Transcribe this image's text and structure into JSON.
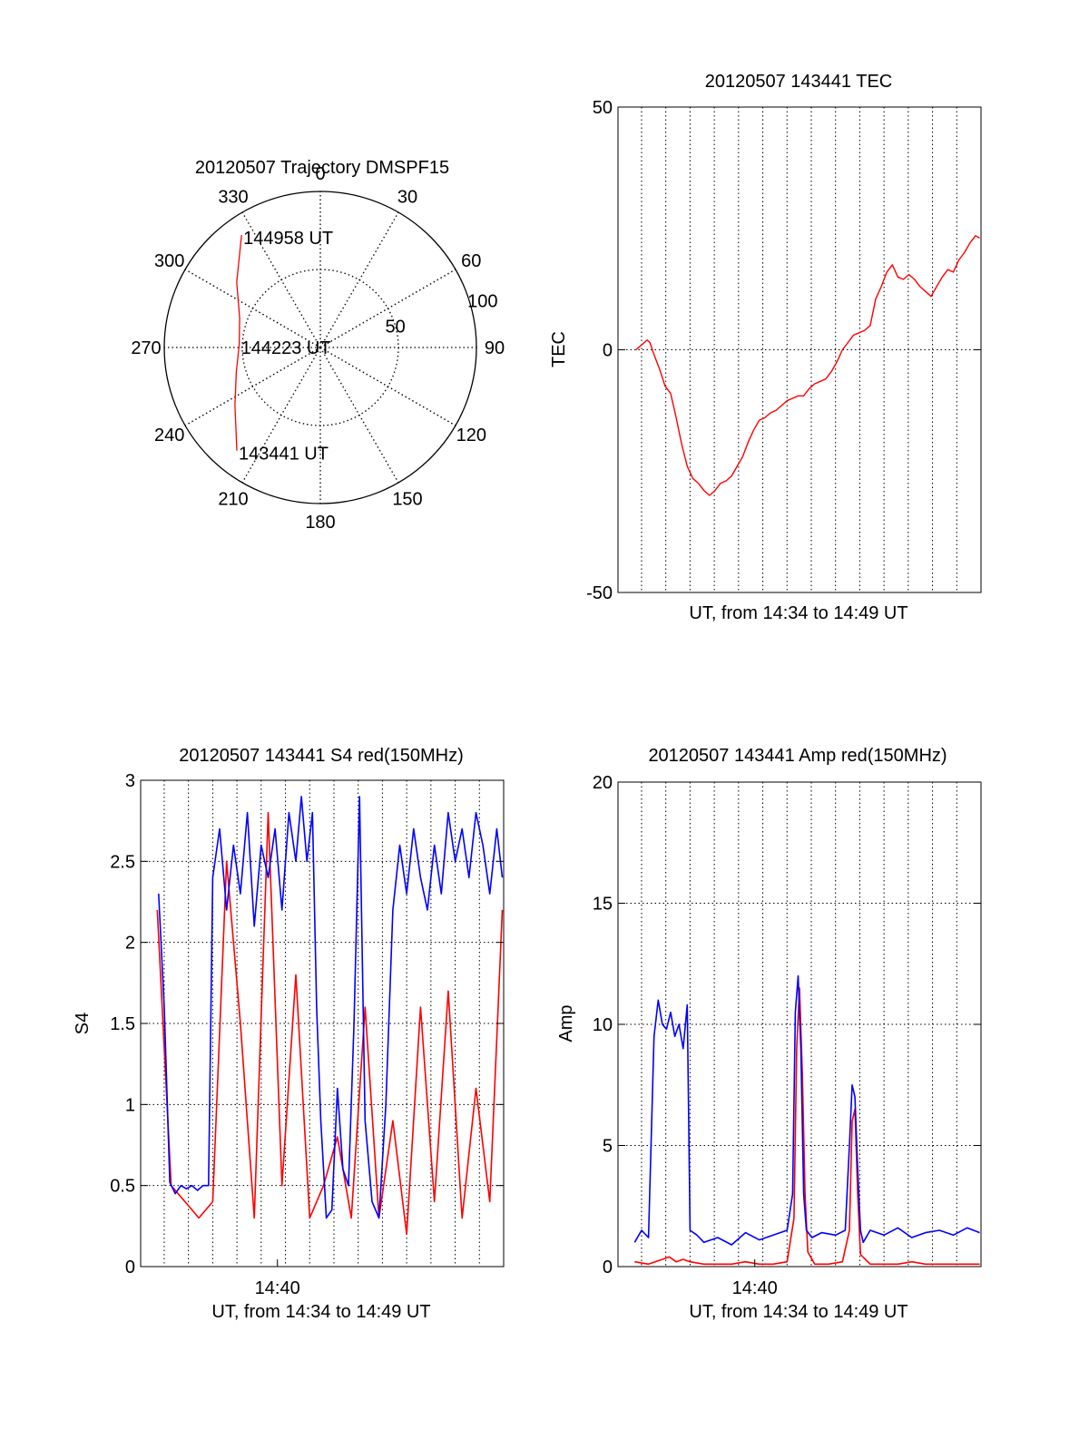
{
  "chart_data": [
    {
      "type": "polar",
      "title": "20120507 Trajectory DMSPF15",
      "angle_labels": [
        "0",
        "30",
        "60",
        "90",
        "120",
        "150",
        "180",
        "210",
        "240",
        "270",
        "300",
        "330"
      ],
      "angles_deg": [
        0,
        30,
        60,
        90,
        120,
        150,
        180,
        210,
        240,
        270,
        300,
        330
      ],
      "radial_ticks": [
        50,
        100
      ],
      "radial_labels": [
        "50",
        "100"
      ],
      "rlim": [
        0,
        100
      ],
      "grid": true,
      "track": {
        "color": "#ff0000",
        "points": [
          [
            325,
            88
          ],
          [
            308,
            68
          ],
          [
            290,
            55
          ],
          [
            272,
            52
          ],
          [
            254,
            56
          ],
          [
            236,
            66
          ],
          [
            219,
            85
          ]
        ]
      },
      "annotations": [
        {
          "text": "144958 UT",
          "az": 325,
          "r": 88
        },
        {
          "text": "144223 UT",
          "az": 272,
          "r": 52
        },
        {
          "text": "143441 UT",
          "az": 219,
          "r": 85
        }
      ]
    },
    {
      "type": "line",
      "title": "20120507 143441 TEC",
      "xlabel": "UT, from 14:34 to 14:49 UT",
      "ylabel": "TEC",
      "xlim": [
        14.568,
        14.83
      ],
      "ylim": [
        -50,
        50
      ],
      "yticks": [
        -50,
        0,
        50
      ],
      "ytick_labels": [
        "-50",
        "0",
        "50"
      ],
      "xgrid": [
        14.585,
        14.6025,
        14.62,
        14.6375,
        14.655,
        14.6725,
        14.69,
        14.7075,
        14.725,
        14.7425,
        14.76,
        14.7775,
        14.795,
        14.8125
      ],
      "ygrid": [
        0
      ],
      "series": [
        {
          "color": "#ff0000",
          "x": [
            14.581,
            14.583,
            14.585,
            14.587,
            14.589,
            14.591,
            14.594,
            14.598,
            14.602,
            14.606,
            14.61,
            14.614,
            14.618,
            14.622,
            14.626,
            14.63,
            14.634,
            14.638,
            14.642,
            14.646,
            14.65,
            14.654,
            14.658,
            14.662,
            14.666,
            14.67,
            14.674,
            14.678,
            14.682,
            14.686,
            14.69,
            14.694,
            14.698,
            14.702,
            14.706,
            14.71,
            14.714,
            14.718,
            14.722,
            14.726,
            14.73,
            14.734,
            14.738,
            14.742,
            14.746,
            14.75,
            14.754,
            14.758,
            14.762,
            14.766,
            14.77,
            14.774,
            14.778,
            14.782,
            14.786,
            14.79,
            14.794,
            14.798,
            14.802,
            14.806,
            14.81,
            14.814,
            14.818,
            14.822,
            14.826,
            14.829
          ],
          "y": [
            0.0,
            0.5,
            1.0,
            1.5,
            2.0,
            1.5,
            -1.0,
            -4.0,
            -7.5,
            -9.0,
            -14.0,
            -19.5,
            -24.0,
            -26.5,
            -27.5,
            -29.0,
            -30.0,
            -29.0,
            -27.5,
            -27.0,
            -26.0,
            -24.0,
            -22.0,
            -19.0,
            -16.5,
            -14.5,
            -14.0,
            -13.0,
            -12.5,
            -11.5,
            -10.5,
            -10.0,
            -9.5,
            -9.5,
            -8.0,
            -7.0,
            -6.5,
            -6.0,
            -4.5,
            -2.5,
            0.0,
            1.5,
            3.0,
            3.5,
            4.0,
            5.0,
            10.5,
            13.0,
            16.0,
            17.5,
            15.0,
            14.5,
            15.5,
            14.5,
            13.0,
            12.0,
            11.0,
            13.0,
            15.0,
            16.5,
            16.0,
            18.5,
            20.0,
            22.0,
            23.5,
            23.0
          ]
        }
      ]
    },
    {
      "type": "line",
      "title": "20120507 143441 S4 red(150MHz)",
      "xlabel": "UT, from 14:34 to 14:49 UT",
      "ylabel": "S4",
      "xlim": [
        14.568,
        14.83
      ],
      "ylim": [
        0,
        3
      ],
      "yticks": [
        0,
        0.5,
        1,
        1.5,
        2,
        2.5,
        3
      ],
      "ytick_labels": [
        "0",
        "0.5",
        "1",
        "1.5",
        "2",
        "2.5",
        "3"
      ],
      "xticks": [
        14.6667
      ],
      "xtick_labels": [
        "14:40"
      ],
      "xgrid": [
        14.585,
        14.6025,
        14.62,
        14.6375,
        14.655,
        14.6725,
        14.69,
        14.7075,
        14.725,
        14.7425,
        14.76,
        14.7775,
        14.795,
        14.8125
      ],
      "ygrid": [
        0.5,
        1,
        1.5,
        2,
        2.5
      ],
      "series": [
        {
          "name": "red",
          "color": "#ff0000",
          "x": [
            14.58,
            14.59,
            14.6,
            14.61,
            14.62,
            14.63,
            14.64,
            14.65,
            14.66,
            14.67,
            14.68,
            14.69,
            14.7,
            14.71,
            14.72,
            14.73,
            14.74,
            14.75,
            14.76,
            14.77,
            14.78,
            14.79,
            14.8,
            14.81,
            14.82,
            14.829
          ],
          "y": [
            2.2,
            0.5,
            0.4,
            0.3,
            0.4,
            2.5,
            1.5,
            0.3,
            2.8,
            0.5,
            1.8,
            0.3,
            0.5,
            0.8,
            0.3,
            1.6,
            0.3,
            0.9,
            0.2,
            1.6,
            0.4,
            1.7,
            0.3,
            1.1,
            0.4,
            2.2
          ]
        },
        {
          "name": "blue",
          "color": "#0000ff",
          "x": [
            14.581,
            14.585,
            14.589,
            14.593,
            14.597,
            14.601,
            14.605,
            14.609,
            14.613,
            14.617,
            14.62,
            14.625,
            14.63,
            14.635,
            14.64,
            14.645,
            14.65,
            14.655,
            14.66,
            14.665,
            14.67,
            14.675,
            14.68,
            14.684,
            14.688,
            14.692,
            14.695,
            14.698,
            14.702,
            14.706,
            14.71,
            14.714,
            14.718,
            14.722,
            14.726,
            14.73,
            14.735,
            14.74,
            14.745,
            14.75,
            14.755,
            14.76,
            14.765,
            14.77,
            14.775,
            14.78,
            14.785,
            14.79,
            14.795,
            14.8,
            14.805,
            14.81,
            14.815,
            14.82,
            14.825,
            14.829
          ],
          "y": [
            2.3,
            1.6,
            0.52,
            0.45,
            0.5,
            0.48,
            0.5,
            0.47,
            0.5,
            0.5,
            2.4,
            2.7,
            2.2,
            2.6,
            2.3,
            2.8,
            2.1,
            2.6,
            2.4,
            2.7,
            2.2,
            2.8,
            2.5,
            2.9,
            2.5,
            2.8,
            1.6,
            0.9,
            0.3,
            0.35,
            1.1,
            0.6,
            0.5,
            1.5,
            2.9,
            0.9,
            0.4,
            0.3,
            1.0,
            2.2,
            2.6,
            2.3,
            2.7,
            2.4,
            2.2,
            2.6,
            2.3,
            2.8,
            2.5,
            2.7,
            2.4,
            2.8,
            2.6,
            2.3,
            2.7,
            2.4
          ]
        }
      ]
    },
    {
      "type": "line",
      "title": "20120507 143441 Amp red(150MHz)",
      "xlabel": "UT, from 14:34 to 14:49 UT",
      "ylabel": "Amp",
      "xlim": [
        14.568,
        14.83
      ],
      "ylim": [
        0,
        20
      ],
      "yticks": [
        0,
        5,
        10,
        15,
        20
      ],
      "ytick_labels": [
        "0",
        "5",
        "10",
        "15",
        "20"
      ],
      "xticks": [
        14.6667
      ],
      "xtick_labels": [
        "14:40"
      ],
      "xgrid": [
        14.585,
        14.6025,
        14.62,
        14.6375,
        14.655,
        14.6725,
        14.69,
        14.7075,
        14.725,
        14.7425,
        14.76,
        14.7775,
        14.795,
        14.8125
      ],
      "ygrid": [
        5,
        10,
        15
      ],
      "series": [
        {
          "name": "red",
          "color": "#ff0000",
          "x": [
            14.58,
            14.59,
            14.6,
            14.605,
            14.61,
            14.615,
            14.62,
            14.63,
            14.64,
            14.65,
            14.66,
            14.67,
            14.68,
            14.69,
            14.695,
            14.697,
            14.699,
            14.701,
            14.703,
            14.705,
            14.71,
            14.72,
            14.73,
            14.735,
            14.737,
            14.739,
            14.741,
            14.743,
            14.75,
            14.76,
            14.77,
            14.78,
            14.79,
            14.8,
            14.81,
            14.82,
            14.829
          ],
          "y": [
            0.2,
            0.1,
            0.3,
            0.4,
            0.2,
            0.3,
            0.2,
            0.1,
            0.1,
            0.1,
            0.2,
            0.1,
            0.1,
            0.2,
            2.0,
            9.0,
            11.5,
            8.0,
            3.0,
            0.6,
            0.1,
            0.1,
            0.2,
            1.5,
            6.0,
            6.5,
            3.0,
            0.5,
            0.1,
            0.1,
            0.1,
            0.2,
            0.1,
            0.1,
            0.1,
            0.1,
            0.1
          ]
        },
        {
          "name": "blue",
          "color": "#0000ff",
          "x": [
            14.58,
            14.585,
            14.59,
            14.594,
            14.597,
            14.6,
            14.603,
            14.606,
            14.609,
            14.612,
            14.615,
            14.618,
            14.62,
            14.625,
            14.63,
            14.64,
            14.65,
            14.66,
            14.67,
            14.68,
            14.69,
            14.694,
            14.696,
            14.698,
            14.7,
            14.702,
            14.704,
            14.708,
            14.715,
            14.725,
            14.732,
            14.735,
            14.737,
            14.739,
            14.741,
            14.743,
            14.745,
            14.75,
            14.76,
            14.77,
            14.78,
            14.79,
            14.8,
            14.81,
            14.82,
            14.829
          ],
          "y": [
            1.0,
            1.5,
            1.2,
            9.5,
            11.0,
            10.0,
            9.8,
            10.5,
            9.5,
            10.0,
            9.0,
            10.8,
            1.5,
            1.3,
            1.0,
            1.2,
            0.9,
            1.4,
            1.1,
            1.3,
            1.5,
            3.0,
            10.5,
            12.0,
            9.0,
            3.0,
            1.5,
            1.2,
            1.4,
            1.3,
            1.5,
            5.0,
            7.5,
            7.0,
            4.0,
            1.5,
            1.0,
            1.5,
            1.3,
            1.6,
            1.2,
            1.4,
            1.5,
            1.3,
            1.6,
            1.4
          ]
        }
      ]
    }
  ]
}
